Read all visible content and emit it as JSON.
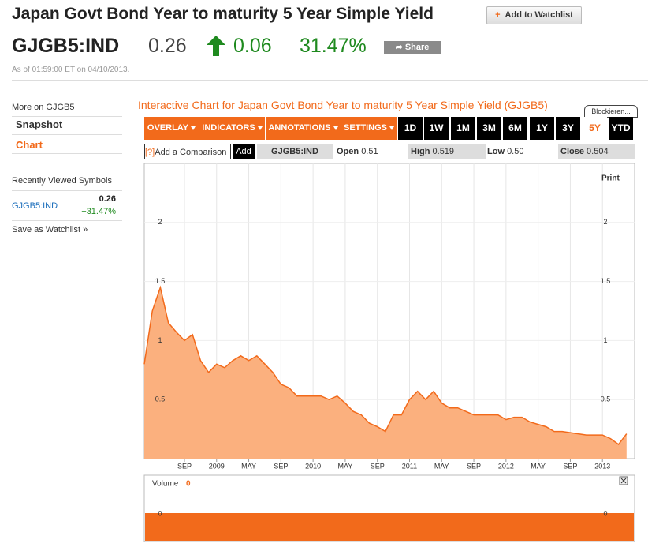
{
  "header": {
    "title": "Japan Govt Bond Year to maturity 5 Year Simple Yield",
    "watchlist_button": "Add to Watchlist",
    "ticker": "GJGB5:IND",
    "price": "0.26",
    "change": "0.06",
    "change_percent": "31.47%",
    "share_button": "Share",
    "timestamp": "As of 01:59:00 ET on 04/10/2013."
  },
  "sidebar": {
    "more_on": "More on GJGB5",
    "links": [
      "Snapshot",
      "Chart"
    ],
    "recent_title": "Recently Viewed Symbols",
    "recent_symbol": "GJGB5:IND",
    "recent_price": "0.26",
    "recent_change": "+31.47%",
    "save_watchlist": "Save as Watchlist"
  },
  "chart_panel": {
    "title": "Interactive Chart for Japan Govt Bond Year to maturity 5 Year Simple Yield (GJGB5)",
    "blocker": "Blockieren...",
    "menus": [
      "OVERLAY",
      "INDICATORS",
      "ANNOTATIONS",
      "SETTINGS"
    ],
    "periods": [
      "1D",
      "1W",
      "1M",
      "3M",
      "6M",
      "1Y",
      "3Y",
      "5Y",
      "YTD"
    ],
    "help": "[?]",
    "comparison_placeholder": "Add a Comparison",
    "add_button": "Add",
    "symbol": "GJGB5:IND",
    "open_label": "Open",
    "open": "0.51",
    "high_label": "High",
    "high": "0.519",
    "low_label": "Low",
    "low": "0.50",
    "close_label": "Close",
    "close": "0.504",
    "print": "Print",
    "volume_label": "Volume",
    "volume_value": "0",
    "volume_tick": "0"
  },
  "chart_data": {
    "type": "area",
    "color": "#f26a1b",
    "area_color": "#fbb07e",
    "grid": true,
    "x": [
      "2008-04",
      "2008-05",
      "2008-06",
      "2008-07",
      "2008-08",
      "2008-09",
      "2008-10",
      "2008-11",
      "2008-12",
      "2009-01",
      "2009-02",
      "2009-03",
      "2009-04",
      "2009-05",
      "2009-06",
      "2009-07",
      "2009-08",
      "2009-09",
      "2009-10",
      "2009-11",
      "2009-12",
      "2010-01",
      "2010-02",
      "2010-03",
      "2010-04",
      "2010-05",
      "2010-06",
      "2010-07",
      "2010-08",
      "2010-09",
      "2010-10",
      "2010-11",
      "2010-12",
      "2011-01",
      "2011-02",
      "2011-03",
      "2011-04",
      "2011-05",
      "2011-06",
      "2011-07",
      "2011-08",
      "2011-09",
      "2011-10",
      "2011-11",
      "2011-12",
      "2012-01",
      "2012-02",
      "2012-03",
      "2012-04",
      "2012-05",
      "2012-06",
      "2012-07",
      "2012-08",
      "2012-09",
      "2012-10",
      "2012-11",
      "2012-12",
      "2013-01",
      "2013-02",
      "2013-03",
      "2013-04"
    ],
    "values": [
      0.8,
      1.25,
      1.45,
      1.15,
      1.07,
      1.0,
      1.05,
      0.83,
      0.73,
      0.8,
      0.77,
      0.83,
      0.87,
      0.83,
      0.87,
      0.8,
      0.73,
      0.63,
      0.6,
      0.53,
      0.53,
      0.53,
      0.53,
      0.5,
      0.53,
      0.47,
      0.4,
      0.37,
      0.3,
      0.27,
      0.23,
      0.37,
      0.37,
      0.5,
      0.57,
      0.5,
      0.57,
      0.47,
      0.43,
      0.43,
      0.4,
      0.37,
      0.37,
      0.37,
      0.37,
      0.33,
      0.35,
      0.35,
      0.31,
      0.29,
      0.27,
      0.23,
      0.23,
      0.22,
      0.21,
      0.2,
      0.2,
      0.2,
      0.17,
      0.12,
      0.21
    ],
    "xlim": [
      "2008-04",
      "2013-05"
    ],
    "xticks": [
      {
        "value": "2008-09",
        "label": "SEP"
      },
      {
        "value": "2009-01",
        "label": "2009"
      },
      {
        "value": "2009-05",
        "label": "MAY"
      },
      {
        "value": "2009-09",
        "label": "SEP"
      },
      {
        "value": "2010-01",
        "label": "2010"
      },
      {
        "value": "2010-05",
        "label": "MAY"
      },
      {
        "value": "2010-09",
        "label": "SEP"
      },
      {
        "value": "2011-01",
        "label": "2011"
      },
      {
        "value": "2011-05",
        "label": "MAY"
      },
      {
        "value": "2011-09",
        "label": "SEP"
      },
      {
        "value": "2012-01",
        "label": "2012"
      },
      {
        "value": "2012-05",
        "label": "MAY"
      },
      {
        "value": "2012-09",
        "label": "SEP"
      },
      {
        "value": "2013-01",
        "label": "2013"
      }
    ],
    "ylim": [
      0,
      2.5
    ],
    "yticks": [
      0.5,
      1,
      1.5,
      2
    ]
  }
}
